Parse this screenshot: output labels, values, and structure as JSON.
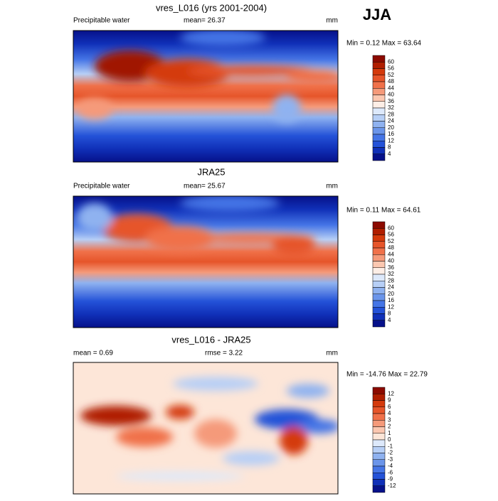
{
  "figure_title": "JJA",
  "panels": [
    {
      "title": "vres_L016 (yrs 2001-2004)",
      "left_label": "Precipitable water",
      "center_label": "mean=  26.37",
      "units": "mm",
      "stats": "Min =  0.12 Max =  63.64",
      "colorbar": {
        "labels": [
          "60",
          "56",
          "52",
          "48",
          "44",
          "40",
          "36",
          "32",
          "28",
          "24",
          "20",
          "16",
          "12",
          "8",
          "4"
        ],
        "colors": [
          "#8c0a00",
          "#b01e00",
          "#d43a0c",
          "#e6552a",
          "#f0714a",
          "#f59a7a",
          "#fbc7b0",
          "#fdeee6",
          "#dde9fb",
          "#b7cff6",
          "#8fb2f0",
          "#6b95ea",
          "#4575e6",
          "#2452d8",
          "#1030b8",
          "#06118a"
        ]
      }
    },
    {
      "title": "JRA25",
      "left_label": "Precipitable water",
      "center_label": "mean=  25.67",
      "units": "mm",
      "stats": "Min =  0.11 Max =  64.61",
      "colorbar": {
        "labels": [
          "60",
          "56",
          "52",
          "48",
          "44",
          "40",
          "36",
          "32",
          "28",
          "24",
          "20",
          "16",
          "12",
          "8",
          "4"
        ],
        "colors": [
          "#8c0a00",
          "#b01e00",
          "#d43a0c",
          "#e6552a",
          "#f0714a",
          "#f59a7a",
          "#fbc7b0",
          "#fdeee6",
          "#dde9fb",
          "#b7cff6",
          "#8fb2f0",
          "#6b95ea",
          "#4575e6",
          "#2452d8",
          "#1030b8",
          "#06118a"
        ]
      }
    },
    {
      "title": "vres_L016 - JRA25",
      "left_label": "mean =   0.69",
      "center_label": "rmse =   3.22",
      "units": "mm",
      "stats": "Min = -14.76 Max =  22.79",
      "colorbar": {
        "labels": [
          "12",
          "9",
          "6",
          "4",
          "3",
          "2",
          "1",
          "0",
          "-1",
          "-2",
          "-3",
          "-4",
          "-6",
          "-9",
          "-12"
        ],
        "colors": [
          "#8c0a00",
          "#b01e00",
          "#d43a0c",
          "#e6552a",
          "#f0714a",
          "#f59a7a",
          "#fbc7b0",
          "#fde6d8",
          "#dde9fb",
          "#b7cff6",
          "#8fb2f0",
          "#6b95ea",
          "#4575e6",
          "#2452d8",
          "#1030b8",
          "#06118a"
        ]
      }
    }
  ]
}
